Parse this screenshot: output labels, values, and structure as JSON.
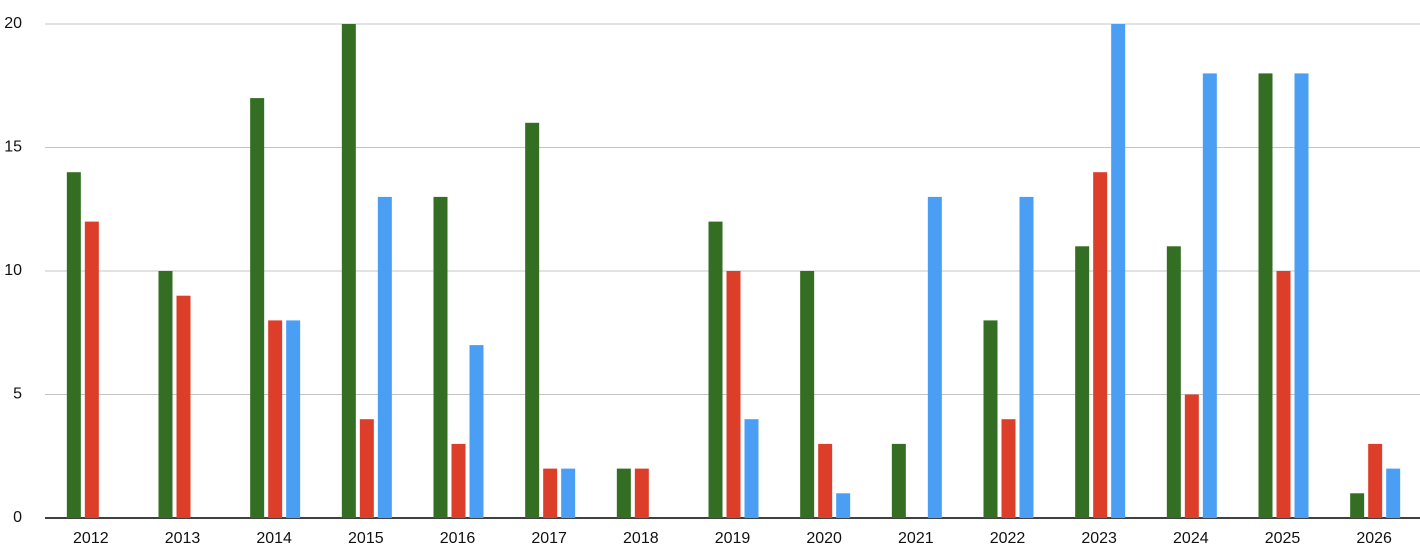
{
  "chart_data": {
    "type": "bar",
    "categories": [
      "2012",
      "2013",
      "2014",
      "2015",
      "2016",
      "2017",
      "2018",
      "2019",
      "2020",
      "2021",
      "2022",
      "2023",
      "2024",
      "2025",
      "2026"
    ],
    "series": [
      {
        "color": "#336e22",
        "values": [
          14,
          10,
          17,
          20,
          13,
          16,
          2,
          12,
          10,
          3,
          8,
          11,
          11,
          18,
          1
        ]
      },
      {
        "color": "#dc3e2a",
        "values": [
          12,
          9,
          8,
          4,
          3,
          2,
          2,
          10,
          3,
          0,
          4,
          14,
          5,
          10,
          3
        ]
      },
      {
        "color": "#4a9ff5",
        "values": [
          0,
          0,
          8,
          13,
          7,
          2,
          0,
          4,
          1,
          13,
          13,
          20,
          18,
          18,
          2
        ]
      }
    ],
    "ylim": [
      0,
      20
    ],
    "yticks": [
      0,
      5,
      10,
      15,
      20
    ],
    "grid": true
  }
}
